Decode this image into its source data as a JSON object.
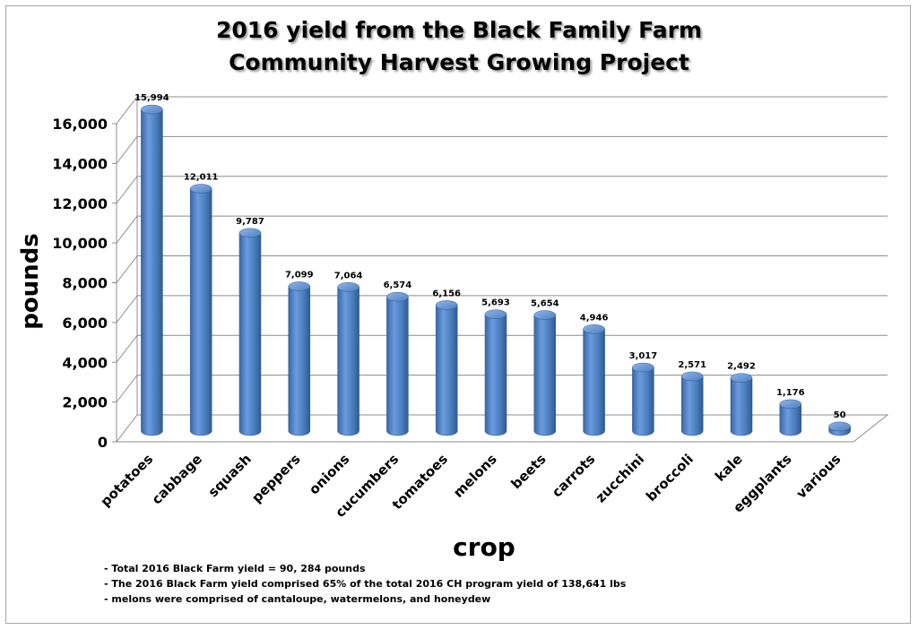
{
  "chart_data": {
    "type": "bar",
    "title_lines": [
      "2016 yield from the Black Family Farm",
      "Community Harvest Growing Project"
    ],
    "xlabel": "crop",
    "ylabel": "pounds",
    "ylim": [
      0,
      16000
    ],
    "yticks": [
      "0",
      "2,000",
      "4,000",
      "6,000",
      "8,000",
      "10,000",
      "12,000",
      "14,000",
      "16,000"
    ],
    "categories": [
      "potatoes",
      "cabbage",
      "squash",
      "peppers",
      "onions",
      "cucumbers",
      "tomatoes",
      "melons",
      "beets",
      "carrots",
      "zucchini",
      "broccoli",
      "kale",
      "eggplants",
      "various"
    ],
    "values": [
      15994,
      12011,
      9787,
      7099,
      7064,
      6574,
      6156,
      5693,
      5654,
      4946,
      3017,
      2571,
      2492,
      1176,
      50
    ],
    "value_labels": [
      "15,994",
      "12,011",
      "9,787",
      "7,099",
      "7,064",
      "6,574",
      "6,156",
      "5,693",
      "5,654",
      "4,946",
      "3,017",
      "2,571",
      "2,492",
      "1,176",
      "50"
    ],
    "grid": true,
    "bar_color": "#4a7ebb",
    "notes": [
      "- Total 2016 Black Farm yield = 90, 284 pounds",
      "- The 2016 Black Farm yield comprised 65% of the total 2016 CH program yield of 138,641 lbs",
      "- melons were comprised of cantaloupe, watermelons, and honeydew"
    ]
  }
}
